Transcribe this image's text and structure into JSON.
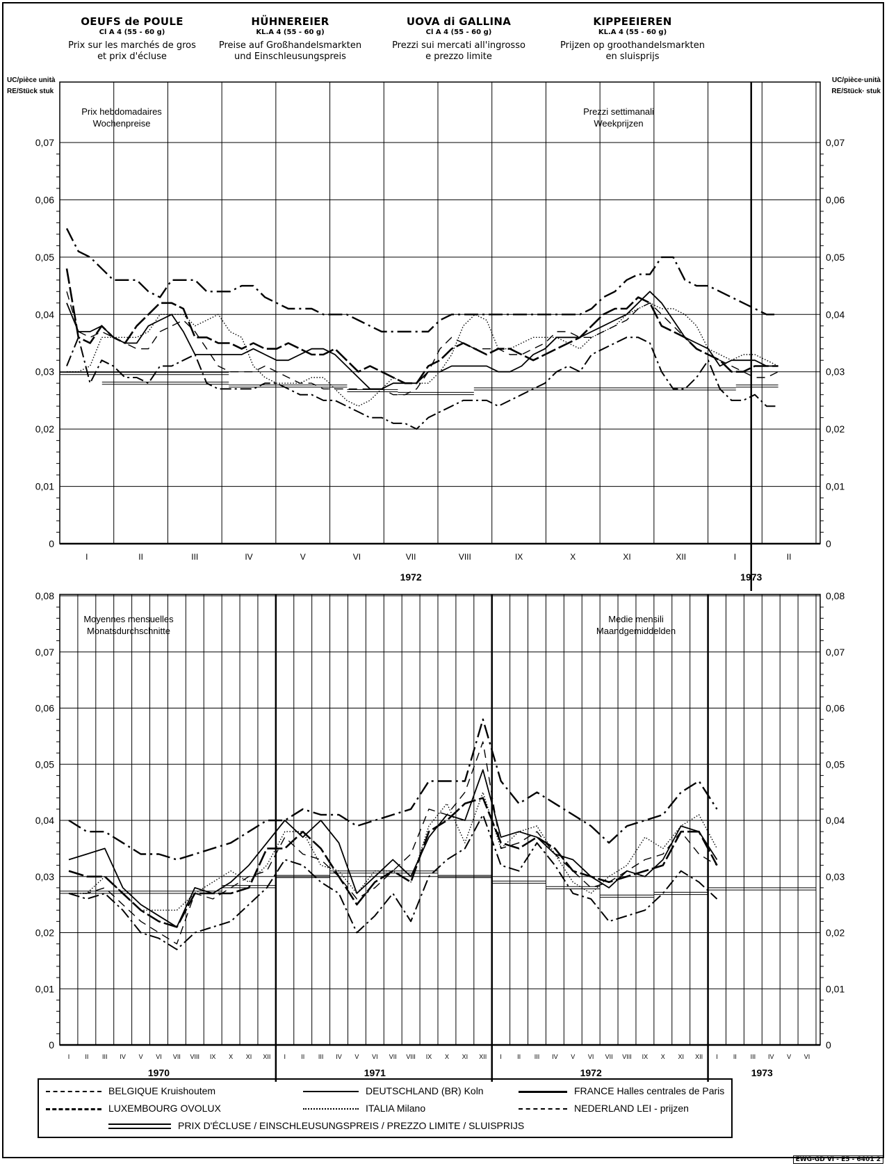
{
  "headers": [
    {
      "title": "OEUFS de POULE",
      "grade": "Cl A 4 (55 - 60 g)",
      "desc1": "Prix sur les marchés de gros",
      "desc2": "et prix d'écluse"
    },
    {
      "title": "HÜHNEREIER",
      "grade": "KL.A 4 (55 - 60 g)",
      "desc1": "Preise auf Großhandelsmarkten",
      "desc2": "und Einschleusungspreis"
    },
    {
      "title": "UOVA di GALLINA",
      "grade": "Cl A 4 (55 - 60 g)",
      "desc1": "Prezzi sui mercati all'ingrosso",
      "desc2": "e prezzo limite"
    },
    {
      "title": "KIPPEEIEREN",
      "grade": "KL.A 4 (55 - 60 g)",
      "desc1": "Prijzen op groothandelsmarkten",
      "desc2": "en sluisprijs"
    }
  ],
  "unit_left_1": "UC/pièce unità",
  "unit_left_2": "RE/Stück stuk",
  "unit_right_1": "UC/pièce·unità",
  "unit_right_2": "RE/Stück· stuk",
  "legend": {
    "be": "BELGIQUE Kruishoutem",
    "de": "DEUTSCHLAND (BR) Koln",
    "fr": "FRANCE Halles centrales de Paris",
    "lu": "LUXEMBOURG OVOLUX",
    "it": "ITALIA Milano",
    "nl": "NEDERLAND LEI - prijzen",
    "sluice": "PRIX D'ÉCLUSE  /  EINSCHLEUSUNGSPREIS  /  PREZZO LIMITE  /  SLUISPRIJS"
  },
  "reference": "EWG-GD VI - E5 - 6401 2",
  "colors": {
    "line": "#000000",
    "background": "#ffffff"
  },
  "chart_data": [
    {
      "type": "line",
      "panel_title_left": [
        "Prix hebdomadaires",
        "Wochenpreise"
      ],
      "panel_title_right": [
        "Prezzi settimanali",
        "Weekprijzen"
      ],
      "x_unit": "week",
      "ylim": [
        0,
        0.075
      ],
      "yticks": [
        "0",
        "0,01",
        "0,02",
        "0,03",
        "0,04",
        "0,05",
        "0,06",
        "0,07"
      ],
      "month_labels": [
        "I",
        "II",
        "III",
        "IV",
        "V",
        "VI",
        "VII",
        "VIII",
        "IX",
        "X",
        "XI",
        "XII",
        "I",
        "II"
      ],
      "year_labels": [
        {
          "label": "1972",
          "month_index": 6.5
        },
        {
          "label": "1973",
          "month_index": 12.8
        }
      ],
      "grid": true,
      "series": [
        {
          "key": "be",
          "name": "BELGIQUE Kruishoutem",
          "values": [
            0.044,
            0.037,
            0.036,
            0.037,
            0.036,
            0.035,
            0.034,
            0.034,
            0.037,
            0.038,
            0.039,
            0.037,
            0.034,
            0.031,
            0.03,
            0.03,
            0.03,
            0.031,
            0.03,
            0.029,
            0.028,
            0.028,
            0.027,
            0.027,
            0.027,
            0.027,
            0.027,
            0.027,
            0.026,
            0.026,
            0.027,
            0.03,
            0.034,
            0.036,
            0.035,
            0.034,
            0.034,
            0.034,
            0.033,
            0.033,
            0.034,
            0.035,
            0.037,
            0.037,
            0.036,
            0.036,
            0.037,
            0.038,
            0.039,
            0.041,
            0.042,
            0.04,
            0.038,
            0.036,
            0.034,
            0.033,
            0.032,
            0.031,
            0.03,
            0.029,
            0.029,
            0.03
          ]
        },
        {
          "key": "de",
          "name": "DEUTSCHLAND (BR) Koln",
          "values": [
            0.042,
            0.037,
            0.037,
            0.038,
            0.036,
            0.035,
            0.035,
            0.038,
            0.039,
            0.04,
            0.037,
            0.033,
            0.033,
            0.033,
            0.033,
            0.033,
            0.034,
            0.033,
            0.032,
            0.032,
            0.033,
            0.034,
            0.034,
            0.033,
            0.031,
            0.029,
            0.027,
            0.027,
            0.028,
            0.028,
            0.028,
            0.03,
            0.03,
            0.031,
            0.031,
            0.031,
            0.031,
            0.03,
            0.03,
            0.031,
            0.033,
            0.034,
            0.036,
            0.036,
            0.036,
            0.037,
            0.038,
            0.039,
            0.04,
            0.042,
            0.044,
            0.042,
            0.039,
            0.036,
            0.035,
            0.034,
            0.031,
            0.032,
            0.032,
            0.032,
            0.031,
            0.031
          ]
        },
        {
          "key": "fr",
          "name": "FRANCE Halles centrales de Paris",
          "values": [
            0.048,
            0.036,
            0.035,
            0.038,
            0.036,
            0.035,
            0.038,
            0.04,
            0.042,
            0.042,
            0.041,
            0.036,
            0.036,
            0.035,
            0.035,
            0.034,
            0.035,
            0.034,
            0.034,
            0.035,
            0.034,
            0.033,
            0.033,
            0.034,
            0.032,
            0.03,
            0.031,
            0.03,
            0.029,
            0.028,
            0.028,
            0.031,
            0.032,
            0.034,
            0.035,
            0.034,
            0.033,
            0.034,
            0.034,
            0.033,
            0.032,
            0.033,
            0.034,
            0.035,
            0.036,
            0.038,
            0.04,
            0.041,
            0.041,
            0.043,
            0.042,
            0.038,
            0.037,
            0.036,
            0.034,
            0.033,
            0.032,
            0.03,
            0.03,
            0.031,
            0.031,
            0.031
          ]
        },
        {
          "key": "lu",
          "name": "LUXEMBOURG OVOLUX",
          "values": [
            0.055,
            0.051,
            0.05,
            0.048,
            0.046,
            0.046,
            0.046,
            0.044,
            0.043,
            0.046,
            0.046,
            0.046,
            0.044,
            0.044,
            0.044,
            0.045,
            0.045,
            0.043,
            0.042,
            0.041,
            0.041,
            0.041,
            0.04,
            0.04,
            0.04,
            0.039,
            0.038,
            0.037,
            0.037,
            0.037,
            0.037,
            0.037,
            0.039,
            0.04,
            0.04,
            0.04,
            0.04,
            0.04,
            0.04,
            0.04,
            0.04,
            0.04,
            0.04,
            0.04,
            0.04,
            0.041,
            0.043,
            0.044,
            0.046,
            0.047,
            0.047,
            0.05,
            0.05,
            0.046,
            0.045,
            0.045,
            0.044,
            0.043,
            0.042,
            0.041,
            0.04,
            0.04
          ]
        },
        {
          "key": "it",
          "name": "ITALIA Milano",
          "values": [
            0.03,
            0.03,
            0.031,
            0.036,
            0.036,
            0.036,
            0.036,
            0.037,
            0.04,
            0.04,
            0.04,
            0.038,
            0.039,
            0.04,
            0.037,
            0.036,
            0.031,
            0.029,
            0.028,
            0.028,
            0.028,
            0.029,
            0.029,
            0.027,
            0.025,
            0.024,
            0.025,
            0.027,
            0.029,
            0.028,
            0.028,
            0.028,
            0.03,
            0.033,
            0.038,
            0.04,
            0.039,
            0.034,
            0.034,
            0.035,
            0.036,
            0.036,
            0.036,
            0.035,
            0.034,
            0.036,
            0.037,
            0.038,
            0.04,
            0.041,
            0.042,
            0.041,
            0.041,
            0.04,
            0.038,
            0.034,
            0.033,
            0.032,
            0.033,
            0.033,
            0.032,
            0.031
          ]
        },
        {
          "key": "nl",
          "name": "NEDERLAND LEI - prijzen",
          "values": [
            0.031,
            0.036,
            0.028,
            0.032,
            0.031,
            0.029,
            0.029,
            0.028,
            0.031,
            0.031,
            0.032,
            0.033,
            0.028,
            0.027,
            0.027,
            0.027,
            0.027,
            0.028,
            0.028,
            0.027,
            0.026,
            0.026,
            0.025,
            0.025,
            0.024,
            0.023,
            0.022,
            0.022,
            0.021,
            0.021,
            0.02,
            0.022,
            0.023,
            0.024,
            0.025,
            0.025,
            0.025,
            0.024,
            0.025,
            0.026,
            0.027,
            0.028,
            0.03,
            0.031,
            0.03,
            0.033,
            0.034,
            0.035,
            0.036,
            0.036,
            0.035,
            0.03,
            0.027,
            0.027,
            0.029,
            0.032,
            0.027,
            0.025,
            0.025,
            0.026,
            0.024,
            0.024
          ]
        },
        {
          "key": "sluice",
          "name": "PRIX D'ÉCLUSE / EINSCHLEUSUNGSPREIS / PREZZO LIMITE / SLUISPRIJS",
          "steps": [
            [
              0,
              4.0,
              0.0297
            ],
            [
              1,
              4.0,
              0.028
            ],
            [
              4.0,
              6.8,
              0.0275
            ],
            [
              6.8,
              8.0,
              0.0267
            ],
            [
              8.0,
              9.8,
              0.0262
            ],
            [
              9.8,
              16.0,
              0.027
            ],
            [
              16.0,
              17.0,
              0.0275
            ]
          ]
        }
      ]
    },
    {
      "type": "line",
      "panel_title_left": [
        "Moyennes mensuelles",
        "Monatsdurchschnitte"
      ],
      "panel_title_right": [
        "Medie mensili",
        "Maandgemiddelden"
      ],
      "x_unit": "month",
      "ylim": [
        0,
        0.08
      ],
      "yticks": [
        "0",
        "0,01",
        "0,02",
        "0,03",
        "0,04",
        "0,05",
        "0,06",
        "0,07",
        "0,08"
      ],
      "month_labels": [
        "I",
        "II",
        "III",
        "IV",
        "V",
        "VI",
        "VII",
        "VIII",
        "IX",
        "X",
        "XI",
        "XII",
        "I",
        "II",
        "III",
        "IV",
        "V",
        "VI",
        "VII",
        "VIII",
        "IX",
        "X",
        "XI",
        "XII",
        "I",
        "II",
        "III",
        "IV",
        "V",
        "VI",
        "VII",
        "VIII",
        "IX",
        "X",
        "XI",
        "XII",
        "I",
        "II",
        "III",
        "IV",
        "V",
        "VI"
      ],
      "year_labels": [
        {
          "label": "1970",
          "month_index": 5.5
        },
        {
          "label": "1971",
          "month_index": 17.5
        },
        {
          "label": "1972",
          "month_index": 29.5
        },
        {
          "label": "1973",
          "month_index": 39.0
        }
      ],
      "grid": true,
      "series": [
        {
          "key": "be",
          "name": "BELGIQUE Kruishoutem",
          "values": [
            0.027,
            0.027,
            0.028,
            0.025,
            0.022,
            0.02,
            0.018,
            0.027,
            0.026,
            0.028,
            0.03,
            0.031,
            0.037,
            0.034,
            0.033,
            0.03,
            0.026,
            0.028,
            0.031,
            0.034,
            0.042,
            0.041,
            0.045,
            0.054,
            0.035,
            0.036,
            0.038,
            0.034,
            0.031,
            0.028,
            0.029,
            0.031,
            0.033,
            0.034,
            0.038,
            0.034,
            0.032
          ]
        },
        {
          "key": "de",
          "name": "DEUTSCHLAND (BR) Koln",
          "values": [
            0.033,
            0.034,
            0.035,
            0.028,
            0.025,
            0.023,
            0.021,
            0.028,
            0.027,
            0.029,
            0.032,
            0.036,
            0.04,
            0.037,
            0.04,
            0.036,
            0.027,
            0.03,
            0.033,
            0.03,
            0.037,
            0.041,
            0.04,
            0.049,
            0.037,
            0.038,
            0.037,
            0.034,
            0.033,
            0.03,
            0.028,
            0.031,
            0.03,
            0.033,
            0.039,
            0.038,
            0.033
          ]
        },
        {
          "key": "fr",
          "name": "FRANCE Halles centrales de Paris",
          "values": [
            0.031,
            0.03,
            0.03,
            0.027,
            0.024,
            0.022,
            0.021,
            0.027,
            0.027,
            0.027,
            0.028,
            0.035,
            0.035,
            0.038,
            0.035,
            0.03,
            0.025,
            0.029,
            0.031,
            0.029,
            0.038,
            0.04,
            0.043,
            0.044,
            0.036,
            0.035,
            0.037,
            0.035,
            0.031,
            0.03,
            0.029,
            0.03,
            0.031,
            0.032,
            0.038,
            0.038,
            0.032
          ]
        },
        {
          "key": "lu",
          "name": "LUXEMBOURG OVOLUX",
          "values": [
            0.04,
            0.038,
            0.038,
            0.036,
            0.034,
            0.034,
            0.033,
            0.034,
            0.035,
            0.036,
            0.038,
            0.04,
            0.04,
            0.042,
            0.041,
            0.041,
            0.039,
            0.04,
            0.041,
            0.042,
            0.047,
            0.047,
            0.047,
            0.058,
            0.047,
            0.043,
            0.045,
            0.043,
            0.041,
            0.039,
            0.036,
            0.039,
            0.04,
            0.041,
            0.045,
            0.047,
            0.042
          ]
        },
        {
          "key": "it",
          "name": "ITALIA Milano",
          "values": [
            0.027,
            0.027,
            0.03,
            0.027,
            0.024,
            0.024,
            0.024,
            0.027,
            0.029,
            0.031,
            0.029,
            0.032,
            0.038,
            0.038,
            0.032,
            0.031,
            0.027,
            0.031,
            0.031,
            0.029,
            0.039,
            0.043,
            0.036,
            0.045,
            0.035,
            0.038,
            0.039,
            0.034,
            0.029,
            0.027,
            0.03,
            0.032,
            0.037,
            0.035,
            0.039,
            0.041,
            0.035
          ]
        },
        {
          "key": "nl",
          "name": "NEDERLAND LEI - prijzen",
          "values": [
            0.027,
            0.026,
            0.027,
            0.024,
            0.02,
            0.019,
            0.017,
            0.02,
            0.021,
            0.022,
            0.025,
            0.028,
            0.033,
            0.032,
            0.029,
            0.027,
            0.02,
            0.023,
            0.027,
            0.022,
            0.03,
            0.033,
            0.035,
            0.041,
            0.032,
            0.031,
            0.036,
            0.032,
            0.027,
            0.026,
            0.022,
            0.023,
            0.024,
            0.027,
            0.031,
            0.029,
            0.026
          ]
        },
        {
          "key": "sluice",
          "name": "PRIX D'ÉCLUSE / EINSCHLEUSUNGSPREIS / PREZZO LIMITE / SLUISPRIJS",
          "steps": [
            [
              0,
              3,
              0.0272
            ],
            [
              3,
              9,
              0.0272
            ],
            [
              9,
              12,
              0.0282
            ],
            [
              12,
              15,
              0.03
            ],
            [
              15,
              21,
              0.0308
            ],
            [
              21,
              24,
              0.03
            ],
            [
              24,
              27,
              0.029
            ],
            [
              27,
              30,
              0.028
            ],
            [
              30,
              33,
              0.0265
            ],
            [
              33,
              36,
              0.027
            ],
            [
              36,
              39,
              0.0278
            ],
            [
              39,
              42,
              0.0278
            ]
          ]
        }
      ]
    }
  ]
}
